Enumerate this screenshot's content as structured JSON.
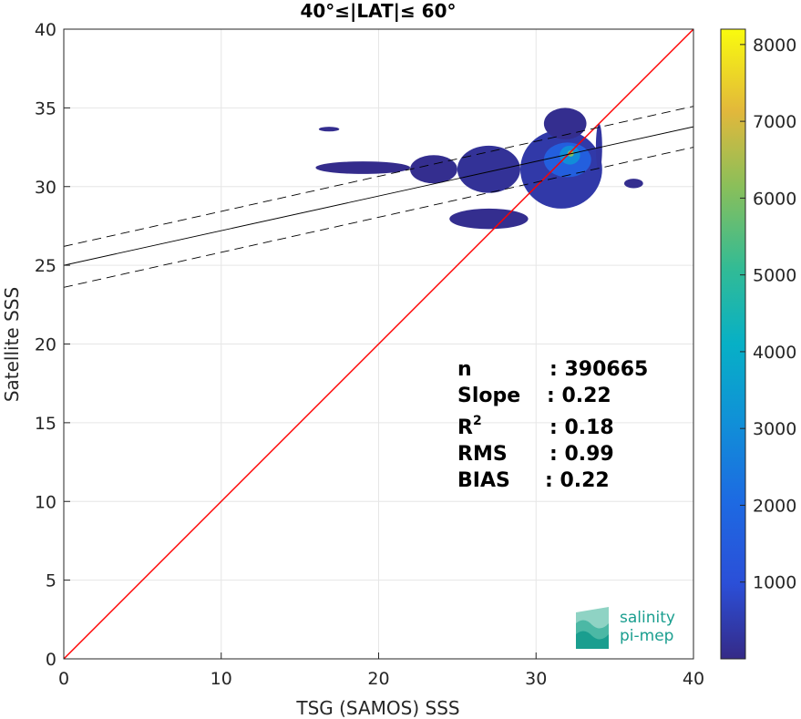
{
  "chart_data": {
    "type": "heatmap",
    "title": "40°≤|LAT|≤ 60°",
    "xlabel": "TSG (SAMOS) SSS",
    "ylabel": "Satellite SSS",
    "xlim": [
      0,
      40
    ],
    "ylim": [
      0,
      40
    ],
    "xticks": [
      "0",
      "10",
      "20",
      "30",
      "40"
    ],
    "yticks": [
      "0",
      "5",
      "10",
      "15",
      "20",
      "25",
      "30",
      "35",
      "40"
    ],
    "grid": true,
    "colorbar": {
      "colormap": "parula",
      "range": [
        0,
        8200
      ],
      "ticks": [
        "1000",
        "2000",
        "3000",
        "4000",
        "5000",
        "6000",
        "7000",
        "8000"
      ]
    },
    "density_blocks": [
      {
        "x": [
          29,
          34.2
        ],
        "y": [
          28.6,
          33.6
        ],
        "level": 400
      },
      {
        "x": [
          25,
          29
        ],
        "y": [
          29.6,
          32.6
        ],
        "level": 200
      },
      {
        "x": [
          22,
          25
        ],
        "y": [
          30.2,
          32.0
        ],
        "level": 100
      },
      {
        "x": [
          16,
          22
        ],
        "y": [
          30.8,
          31.6
        ],
        "level": 60
      },
      {
        "x": [
          30.5,
          33.5
        ],
        "y": [
          30.6,
          32.8
        ],
        "level": 1600
      },
      {
        "x": [
          31.5,
          32.8
        ],
        "y": [
          31.4,
          32.6
        ],
        "level": 3000
      },
      {
        "x": [
          32,
          32.4
        ],
        "y": [
          31.9,
          32.3
        ],
        "level": 6000
      },
      {
        "x": [
          24.5,
          29.5
        ],
        "y": [
          27.3,
          28.6
        ],
        "level": 100
      },
      {
        "x": [
          30.5,
          33.2
        ],
        "y": [
          33.0,
          35.0
        ],
        "level": 100
      },
      {
        "x": [
          16.2,
          17.5
        ],
        "y": [
          33.5,
          33.8
        ],
        "level": 100
      },
      {
        "x": [
          35.6,
          36.8
        ],
        "y": [
          29.9,
          30.5
        ],
        "level": 100
      },
      {
        "x": [
          33.8,
          34.2
        ],
        "y": [
          31.0,
          34.0
        ],
        "level": 300
      }
    ],
    "lines": [
      {
        "kind": "identity",
        "color": "#ff0000",
        "points": [
          [
            0,
            0
          ],
          [
            40,
            40
          ]
        ]
      },
      {
        "kind": "fit",
        "color": "#000000",
        "style": "solid",
        "points": [
          [
            0,
            25.0
          ],
          [
            40,
            33.8
          ]
        ]
      },
      {
        "kind": "fit-upper",
        "color": "#000000",
        "style": "dashed",
        "points": [
          [
            0,
            26.2
          ],
          [
            40,
            35.1
          ]
        ]
      },
      {
        "kind": "fit-lower",
        "color": "#000000",
        "style": "dashed",
        "points": [
          [
            0,
            23.6
          ],
          [
            40,
            32.5
          ]
        ]
      }
    ],
    "stats": [
      {
        "label": "n",
        "value": ": 390665"
      },
      {
        "label": "Slope",
        "value": ": 0.22"
      },
      {
        "label": "R",
        "sup": "2",
        "value": ": 0.18"
      },
      {
        "label": "RMS",
        "value": ": 0.99"
      },
      {
        "label": "BIAS",
        "value": ": 0.22"
      }
    ]
  },
  "logo": {
    "line1": "salinity",
    "line2": "pi-mep",
    "color": "#1a9e8f"
  }
}
